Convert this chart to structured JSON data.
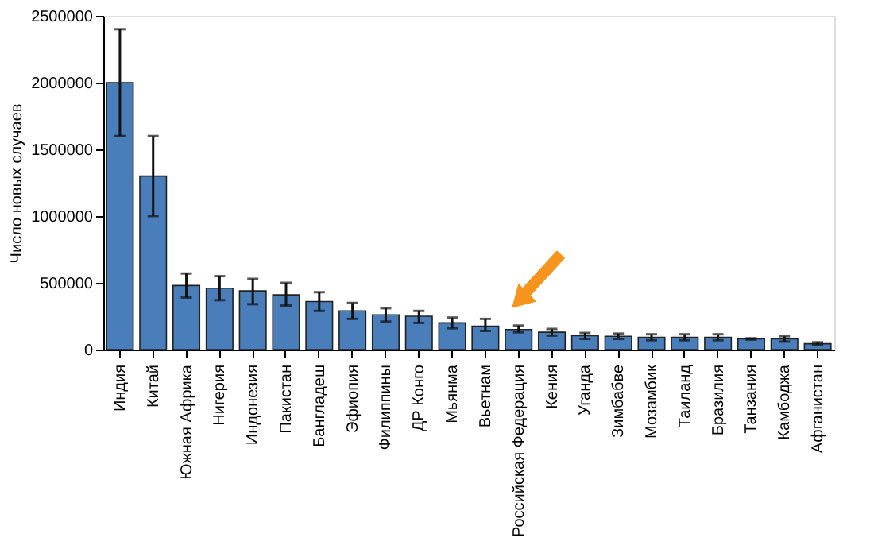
{
  "chart_data": {
    "type": "bar",
    "ylabel": "Число новых случаев",
    "categories": [
      "Индия",
      "Китай",
      "Южная Африка",
      "Нигерия",
      "Индонезия",
      "Пакистан",
      "Бангладеш",
      "Эфиопия",
      "Филиппины",
      "ДР Конго",
      "Мьянма",
      "Вьетнам",
      "Российская Федерация",
      "Кения",
      "Уганда",
      "Зимбабве",
      "Мозамбик",
      "Таиланд",
      "Бразилия",
      "Танзания",
      "Камбоджа",
      "Афганистан"
    ],
    "values": [
      2000000,
      1300000,
      480000,
      460000,
      440000,
      410000,
      360000,
      290000,
      260000,
      250000,
      200000,
      175000,
      150000,
      130000,
      104000,
      100000,
      92000,
      92000,
      92000,
      80000,
      80000,
      44000
    ],
    "errors": [
      [
        1600000,
        2400000
      ],
      [
        1000000,
        1600000
      ],
      [
        390000,
        570000
      ],
      [
        370000,
        550000
      ],
      [
        340000,
        530000
      ],
      [
        330000,
        500000
      ],
      [
        290000,
        430000
      ],
      [
        230000,
        350000
      ],
      [
        210000,
        310000
      ],
      [
        200000,
        290000
      ],
      [
        160000,
        240000
      ],
      [
        140000,
        230000
      ],
      [
        130000,
        180000
      ],
      [
        105000,
        155000
      ],
      [
        80000,
        125000
      ],
      [
        80000,
        120000
      ],
      [
        70000,
        115000
      ],
      [
        70000,
        115000
      ],
      [
        70000,
        115000
      ],
      [
        75000,
        85000
      ],
      [
        60000,
        100000
      ],
      [
        35000,
        55000
      ]
    ],
    "color": "#4a7ebb",
    "ylim": [
      0,
      2500000
    ],
    "yticks": [
      0,
      500000,
      1000000,
      1500000,
      2000000,
      2500000
    ]
  }
}
